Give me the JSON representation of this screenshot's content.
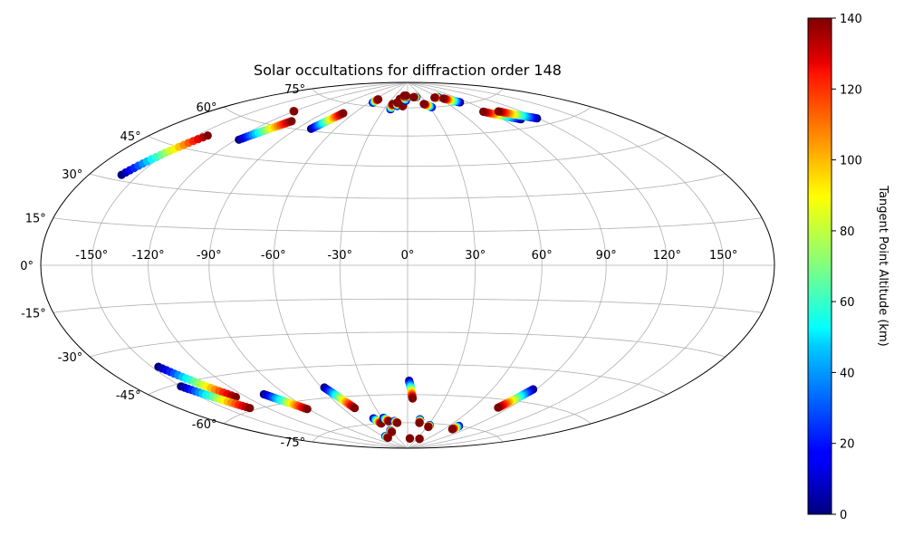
{
  "chart_data": {
    "type": "scatter",
    "projection": "hammer",
    "title": "Solar occultations for diffraction order 148",
    "lon_ticks": [
      "-150°",
      "-120°",
      "-90°",
      "-60°",
      "-30°",
      "0°",
      "30°",
      "60°",
      "90°",
      "120°",
      "150°"
    ],
    "lon_values": [
      -150,
      -120,
      -90,
      -60,
      -30,
      0,
      30,
      60,
      90,
      120,
      150
    ],
    "lat_ticks": [
      "75°",
      "60°",
      "45°",
      "30°",
      "15°",
      "0°",
      "-15°",
      "-30°",
      "-45°",
      "-60°",
      "-75°"
    ],
    "lat_values": [
      75,
      60,
      45,
      30,
      15,
      0,
      -15,
      -30,
      -45,
      -60,
      -75
    ],
    "grid": true,
    "colorbar": {
      "label": "Tangent Point Altitude (km)",
      "colormap": "jet",
      "min": 0,
      "max": 140,
      "ticks": [
        "0",
        "20",
        "40",
        "60",
        "80",
        "100",
        "120",
        "140"
      ],
      "tick_values": [
        0,
        20,
        40,
        60,
        80,
        100,
        120,
        140
      ]
    },
    "tracks": [
      {
        "start": [
          -160,
          32
        ],
        "end": [
          -143,
          51
        ]
      },
      {
        "start": [
          -118,
          52
        ],
        "end": [
          -104,
          63
        ]
      },
      {
        "start": [
          -121,
          67
        ],
        "end": [
          -120,
          67
        ]
      },
      {
        "start": [
          -79,
          61
        ],
        "end": [
          -71,
          70
        ]
      },
      {
        "start": [
          -55,
          77
        ],
        "end": [
          -54,
          79
        ]
      },
      {
        "start": [
          -22,
          74
        ],
        "end": [
          -23,
          77
        ]
      },
      {
        "start": [
          -15,
          76
        ],
        "end": [
          -17,
          78
        ]
      },
      {
        "start": [
          -14,
          80
        ],
        "end": [
          -15,
          80
        ]
      },
      {
        "start": [
          -7,
          76
        ],
        "end": [
          -7,
          76
        ]
      },
      {
        "start": [
          -3,
          79
        ],
        "end": [
          -8,
          82
        ]
      },
      {
        "start": [
          0,
          81
        ],
        "end": [
          -4,
          82
        ]
      },
      {
        "start": [
          19,
          81
        ],
        "end": [
          13,
          81
        ]
      },
      {
        "start": [
          33,
          75
        ],
        "end": [
          25,
          77
        ]
      },
      {
        "start": [
          62,
          80
        ],
        "end": [
          54,
          80
        ]
      },
      {
        "start": [
          80,
          76
        ],
        "end": [
          67,
          79
        ]
      },
      {
        "start": [
          105,
          64
        ],
        "end": [
          85,
          70
        ]
      },
      {
        "start": [
          119,
          63
        ],
        "end": [
          100,
          69
        ]
      },
      {
        "start": [
          -146,
          -38
        ],
        "end": [
          -127,
          -54
        ]
      },
      {
        "start": [
          -150,
          -46
        ],
        "end": [
          -133,
          -59
        ]
      },
      {
        "start": [
          -105,
          -55
        ],
        "end": [
          -91,
          -64
        ]
      },
      {
        "start": [
          -58,
          -55
        ],
        "end": [
          -49,
          -66
        ]
      },
      {
        "start": [
          -55,
          -82
        ],
        "end": [
          -55,
          -83
        ]
      },
      {
        "start": [
          -40,
          -72
        ],
        "end": [
          -36,
          -75
        ]
      },
      {
        "start": [
          -31,
          -79
        ],
        "end": [
          -31,
          -80
        ]
      },
      {
        "start": [
          -28,
          -72
        ],
        "end": [
          -24,
          -74
        ]
      },
      {
        "start": [
          -17,
          -74
        ],
        "end": [
          -14,
          -75
        ]
      },
      {
        "start": [
          1,
          -53
        ],
        "end": [
          4,
          -62
        ]
      },
      {
        "start": [
          15,
          -73
        ],
        "end": [
          16,
          -75
        ]
      },
      {
        "start": [
          7,
          -84
        ],
        "end": [
          7,
          -84
        ]
      },
      {
        "start": [
          32,
          -76
        ],
        "end": [
          32,
          -77
        ]
      },
      {
        "start": [
          38,
          -84
        ],
        "end": [
          38,
          -84
        ]
      },
      {
        "start": [
          73,
          -75
        ],
        "end": [
          72,
          -77
        ]
      },
      {
        "start": [
          88,
          -54
        ],
        "end": [
          81,
          -64
        ]
      }
    ]
  }
}
